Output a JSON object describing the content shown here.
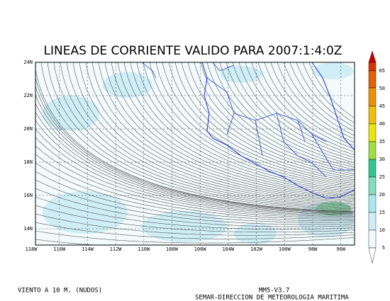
{
  "title": "LINEAS DE CORRIENTE VALIDO PARA 2007:1:4:0Z",
  "map": {
    "lat_labels": [
      "24N",
      "22N",
      "20N",
      "18N",
      "16N",
      "14N"
    ],
    "lon_labels": [
      "118W",
      "116W",
      "114W",
      "112W",
      "110W",
      "108W",
      "106W",
      "104W",
      "102W",
      "100W",
      "98W",
      "96W"
    ]
  },
  "colorbar": {
    "labels": [
      "65",
      "50",
      "45",
      "40",
      "35",
      "30",
      "25",
      "20",
      "15",
      "10",
      "5"
    ]
  },
  "footer": {
    "left": "VIENTO A 10 M. (NUDOS)",
    "model": "MM5-V3.7",
    "credit": "SEMAR-DIRECCION DE METEOROLOGIA MARITIMA"
  }
}
